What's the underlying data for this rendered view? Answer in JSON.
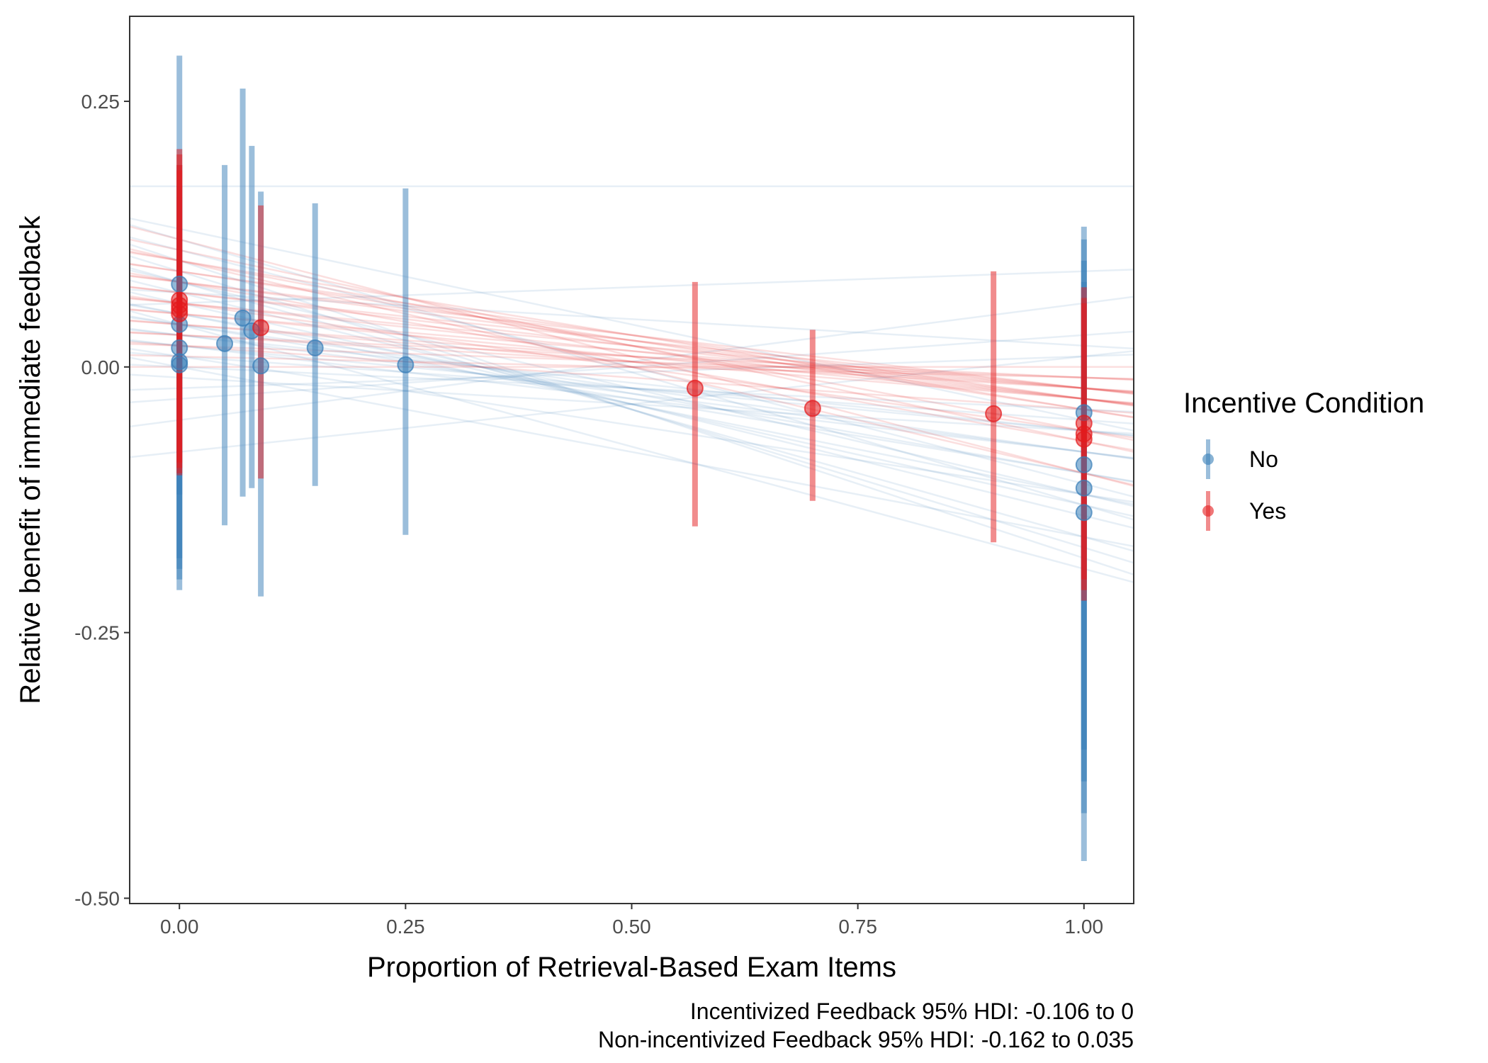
{
  "chart_data": {
    "type": "scatter",
    "xlabel": "Proportion of Retrieval-Based Exam Items",
    "ylabel": "Relative benefit of immediate feedback",
    "xlim": [
      -0.055,
      1.055
    ],
    "ylim": [
      -0.505,
      0.33
    ],
    "x_ticks": [
      0,
      0.25,
      0.5,
      0.75,
      1
    ],
    "x_tick_labels": [
      "0.00",
      "0.25",
      "0.50",
      "0.75",
      "1.00"
    ],
    "y_ticks": [
      0.25,
      0,
      -0.25,
      -0.5
    ],
    "y_tick_labels": [
      "0.25",
      "0.00",
      "-0.25",
      "-0.50"
    ],
    "grid": false,
    "legend": {
      "title": "Incentive Condition",
      "position": "right",
      "entries": [
        {
          "label": "No",
          "color": "#377EB8"
        },
        {
          "label": "Yes",
          "color": "#E41A1C"
        }
      ]
    },
    "captions": [
      "Incentivized Feedback 95% HDI: -0.106 to 0",
      "Non-incentivized Feedback 95% HDI: -0.162 to 0.035"
    ],
    "series": [
      {
        "name": "No",
        "color": "#377EB8",
        "points": [
          {
            "x": 0,
            "y": 0.078,
            "lo": -0.21,
            "hi": 0.293
          },
          {
            "x": 0,
            "y": 0.04,
            "lo": -0.2,
            "hi": 0.19
          },
          {
            "x": 0,
            "y": 0.018,
            "lo": -0.19,
            "hi": 0.17
          },
          {
            "x": 0,
            "y": 0.005,
            "lo": -0.18,
            "hi": 0.16
          },
          {
            "x": 0,
            "y": 0.002,
            "lo": -0.12,
            "hi": 0.1
          },
          {
            "x": 0.05,
            "y": 0.022,
            "lo": -0.149,
            "hi": 0.19
          },
          {
            "x": 0.07,
            "y": 0.046,
            "lo": -0.122,
            "hi": 0.262
          },
          {
            "x": 0.08,
            "y": 0.034,
            "lo": -0.114,
            "hi": 0.208
          },
          {
            "x": 0.09,
            "y": 0.001,
            "lo": -0.216,
            "hi": 0.165
          },
          {
            "x": 0.15,
            "y": 0.018,
            "lo": -0.112,
            "hi": 0.154
          },
          {
            "x": 0.25,
            "y": 0.002,
            "lo": -0.158,
            "hi": 0.168
          },
          {
            "x": 1,
            "y": -0.043,
            "lo": -0.465,
            "hi": 0.132
          },
          {
            "x": 1,
            "y": -0.092,
            "lo": -0.42,
            "hi": 0.12
          },
          {
            "x": 1,
            "y": -0.114,
            "lo": -0.39,
            "hi": 0.1
          },
          {
            "x": 1,
            "y": -0.137,
            "lo": -0.36,
            "hi": 0.08
          }
        ],
        "lines": [
          [
            0.17,
            0.0
          ],
          [
            0.12,
            -0.25
          ],
          [
            0.1,
            -0.28
          ],
          [
            0.09,
            -0.26
          ],
          [
            0.08,
            -0.24
          ],
          [
            0.07,
            -0.21
          ],
          [
            0.06,
            -0.19
          ],
          [
            0.05,
            -0.17
          ],
          [
            0.05,
            -0.15
          ],
          [
            0.04,
            -0.14
          ],
          [
            0.04,
            -0.12
          ],
          [
            0.03,
            -0.11
          ],
          [
            0.03,
            -0.09
          ],
          [
            0.02,
            -0.08
          ],
          [
            0.02,
            -0.1
          ],
          [
            0.01,
            -0.06
          ],
          [
            0.01,
            -0.13
          ],
          [
            0.0,
            -0.04
          ],
          [
            0.0,
            -0.16
          ],
          [
            -0.01,
            -0.05
          ],
          [
            -0.02,
            0.03
          ],
          [
            -0.03,
            0.06
          ],
          [
            -0.05,
            0.11
          ],
          [
            -0.08,
            0.09
          ],
          [
            0.06,
            0.03
          ],
          [
            0.08,
            -0.2
          ],
          [
            0.11,
            -0.22
          ],
          [
            0.13,
            -0.18
          ],
          [
            0.04,
            -0.23
          ],
          [
            0.07,
            -0.05
          ]
        ]
      },
      {
        "name": "Yes",
        "color": "#E41A1C",
        "points": [
          {
            "x": 0,
            "y": 0.063,
            "lo": -0.102,
            "hi": 0.205
          },
          {
            "x": 0,
            "y": 0.058,
            "lo": -0.1,
            "hi": 0.2
          },
          {
            "x": 0,
            "y": 0.054,
            "lo": -0.095,
            "hi": 0.19
          },
          {
            "x": 0,
            "y": 0.05,
            "lo": -0.09,
            "hi": 0.185
          },
          {
            "x": 0.09,
            "y": 0.037,
            "lo": -0.105,
            "hi": 0.152
          },
          {
            "x": 0.57,
            "y": -0.02,
            "lo": -0.15,
            "hi": 0.08
          },
          {
            "x": 0.7,
            "y": -0.039,
            "lo": -0.126,
            "hi": 0.035
          },
          {
            "x": 0.9,
            "y": -0.044,
            "lo": -0.165,
            "hi": 0.09
          },
          {
            "x": 1,
            "y": -0.053,
            "lo": -0.2,
            "hi": 0.075
          },
          {
            "x": 1,
            "y": -0.063,
            "lo": -0.21,
            "hi": 0.065
          },
          {
            "x": 1,
            "y": -0.068,
            "lo": -0.22,
            "hi": 0.06
          }
        ],
        "lines": [
          [
            0.12,
            -0.22
          ],
          [
            0.11,
            -0.18
          ],
          [
            0.1,
            -0.16
          ],
          [
            0.1,
            -0.14
          ],
          [
            0.09,
            -0.13
          ],
          [
            0.09,
            -0.12
          ],
          [
            0.08,
            -0.11
          ],
          [
            0.08,
            -0.1
          ],
          [
            0.07,
            -0.1
          ],
          [
            0.07,
            -0.09
          ],
          [
            0.06,
            -0.08
          ],
          [
            0.06,
            -0.09
          ],
          [
            0.05,
            -0.07
          ],
          [
            0.05,
            -0.08
          ],
          [
            0.04,
            -0.06
          ],
          [
            0.04,
            -0.07
          ],
          [
            0.03,
            -0.05
          ],
          [
            0.03,
            -0.04
          ],
          [
            0.02,
            -0.03
          ],
          [
            0.01,
            -0.02
          ],
          [
            0.1,
            -0.2
          ],
          [
            0.08,
            -0.15
          ],
          [
            0.06,
            -0.12
          ],
          [
            0.02,
            -0.06
          ],
          [
            0.0,
            0.0
          ]
        ]
      }
    ]
  }
}
